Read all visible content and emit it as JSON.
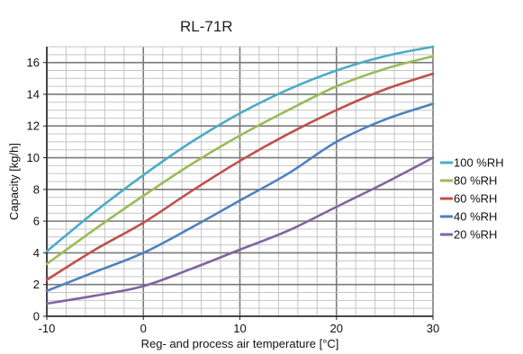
{
  "chart_data": {
    "type": "line",
    "title": "RL-71R",
    "xlabel": "Reg- and process air temperature [°C]",
    "ylabel": "Capacity [kg/h]",
    "xlim": [
      -10,
      30
    ],
    "ylim": [
      0,
      17
    ],
    "xticks": [
      -10,
      0,
      10,
      20,
      30
    ],
    "yticks": [
      0,
      2,
      4,
      6,
      8,
      10,
      12,
      14,
      16
    ],
    "grid": true,
    "legend_position": "right",
    "x": [
      -10,
      -5,
      0,
      5,
      10,
      15,
      20,
      25,
      30
    ],
    "series": [
      {
        "name": "100 %RH",
        "color": "#4bacc6",
        "values": [
          4.1,
          6.6,
          8.9,
          11.0,
          12.8,
          14.3,
          15.5,
          16.4,
          17.0
        ]
      },
      {
        "name": "80 %RH",
        "color": "#9bbb59",
        "values": [
          3.3,
          5.5,
          7.6,
          9.6,
          11.4,
          13.0,
          14.5,
          15.6,
          16.4
        ]
      },
      {
        "name": "60 %RH",
        "color": "#c0504d",
        "values": [
          2.3,
          4.2,
          5.9,
          7.9,
          9.8,
          11.5,
          13.0,
          14.3,
          15.3
        ]
      },
      {
        "name": "40 %RH",
        "color": "#4f81bd",
        "values": [
          1.6,
          2.8,
          4.0,
          5.6,
          7.3,
          9.0,
          11.0,
          12.4,
          13.4
        ]
      },
      {
        "name": "20 %RH",
        "color": "#8064a2",
        "values": [
          0.8,
          1.3,
          1.9,
          3.0,
          4.2,
          5.4,
          6.9,
          8.4,
          10.0
        ]
      }
    ]
  }
}
